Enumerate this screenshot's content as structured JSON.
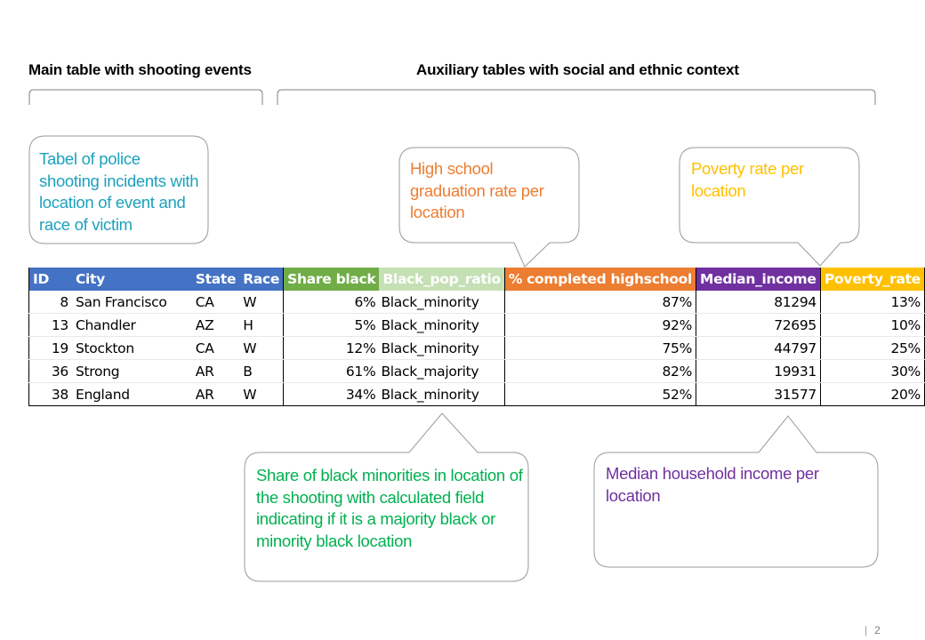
{
  "headings": {
    "main": "Main table with shooting events",
    "aux": "Auxiliary tables with social and ethnic context"
  },
  "callouts": {
    "police": "Tabel of police shooting incidents with location of event and race of victim",
    "highschool": "High school graduation rate per location",
    "poverty": "Poverty rate per location",
    "share": "Share of black minorities in location of the shooting with calculated field indicating if it is a majority black or minority black location",
    "income": "Median household income per location"
  },
  "colors": {
    "id_header": "#4472c4",
    "share_header": "#70ad47",
    "ratio_header": "#c5e0b4",
    "highschool_header": "#ed7d31",
    "income_header": "#7030a0",
    "poverty_header": "#ffc000",
    "police_text": "#1ba1bd",
    "highschool_text": "#ed7d31",
    "poverty_text": "#ffc000",
    "share_text": "#00b050",
    "income_text": "#7030a0"
  },
  "table": {
    "headers": {
      "id": "ID",
      "city": "City",
      "state": "State",
      "race": "Race",
      "share": "Share black",
      "ratio": "Black_pop_ratio",
      "highschool": "% completed highschool",
      "income": "Median_income",
      "poverty": "Poverty_rate"
    },
    "rows": [
      {
        "id": "8",
        "city": "San Francisco",
        "state": "CA",
        "race": "W",
        "share": "6%",
        "ratio": "Black_minority",
        "highschool": "87%",
        "income": "81294",
        "poverty": "13%"
      },
      {
        "id": "13",
        "city": "Chandler",
        "state": "AZ",
        "race": "H",
        "share": "5%",
        "ratio": "Black_minority",
        "highschool": "92%",
        "income": "72695",
        "poverty": "10%"
      },
      {
        "id": "19",
        "city": "Stockton",
        "state": "CA",
        "race": "W",
        "share": "12%",
        "ratio": "Black_minority",
        "highschool": "75%",
        "income": "44797",
        "poverty": "25%"
      },
      {
        "id": "36",
        "city": "Strong",
        "state": "AR",
        "race": "B",
        "share": "61%",
        "ratio": "Black_majority",
        "highschool": "82%",
        "income": "19931",
        "poverty": "30%"
      },
      {
        "id": "38",
        "city": "England",
        "state": "AR",
        "race": "W",
        "share": "34%",
        "ratio": "Black_minority",
        "highschool": "52%",
        "income": "31577",
        "poverty": "20%"
      }
    ]
  },
  "page_number": "2"
}
